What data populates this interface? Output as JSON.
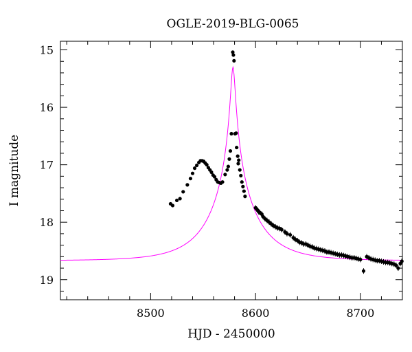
{
  "chart_data": {
    "type": "scatter",
    "title": "OGLE-2019-BLG-0065",
    "xlabel": "HJD - 2450000",
    "ylabel": "I magnitude",
    "xlim": [
      8414,
      8740
    ],
    "ylim": [
      19.35,
      14.85
    ],
    "y_inverted": true,
    "grid": false,
    "legend": "none",
    "xticks": [
      8500,
      8600,
      8700
    ],
    "yticks": [
      15,
      16,
      17,
      18,
      19
    ],
    "colors": {
      "data": "#000000",
      "model": "#ff00ff",
      "axes": "#000000"
    },
    "series": [
      {
        "kind": "points",
        "points": [
          [
            8519,
            17.68
          ],
          [
            8521,
            17.71
          ],
          [
            8525,
            17.62
          ],
          [
            8528,
            17.59
          ],
          [
            8531,
            17.47
          ],
          [
            8535,
            17.35
          ],
          [
            8538,
            17.24
          ],
          [
            8540,
            17.15
          ],
          [
            8542,
            17.06
          ],
          [
            8544,
            17.01
          ],
          [
            8546,
            16.96
          ],
          [
            8547.5,
            16.93
          ],
          [
            8549,
            16.93
          ],
          [
            8550.5,
            16.94
          ],
          [
            8552,
            16.97
          ],
          [
            8553.5,
            17.0
          ],
          [
            8555,
            17.05
          ],
          [
            8556.5,
            17.09
          ],
          [
            8558,
            17.13
          ],
          [
            8559.5,
            17.18
          ],
          [
            8561,
            17.21
          ],
          [
            8562.5,
            17.26
          ],
          [
            8564,
            17.3
          ],
          [
            8565.5,
            17.31
          ],
          [
            8567,
            17.32
          ],
          [
            8568.5,
            17.3
          ],
          [
            8571,
            17.17
          ],
          [
            8573,
            17.09
          ],
          [
            8574,
            17.03
          ],
          [
            8575,
            16.9
          ],
          [
            8576,
            16.76
          ],
          [
            8577,
            16.46
          ],
          [
            8578.3,
            15.04
          ],
          [
            8578.9,
            15.09
          ],
          [
            8579.5,
            15.19
          ],
          [
            8580.5,
            16.46
          ],
          [
            8581.5,
            16.45
          ],
          [
            8582,
            16.7
          ],
          [
            8583,
            16.85
          ],
          [
            8583.5,
            16.98
          ],
          [
            8584,
            16.92
          ],
          [
            8585,
            17.09
          ],
          [
            8586,
            17.19
          ],
          [
            8587,
            17.3
          ],
          [
            8588,
            17.38
          ],
          [
            8589,
            17.46
          ],
          [
            8590,
            17.55
          ],
          [
            8600,
            17.75
          ],
          [
            8601,
            17.77
          ],
          [
            8602,
            17.79
          ],
          [
            8603,
            17.82
          ],
          [
            8604,
            17.83
          ],
          [
            8606,
            17.86
          ],
          [
            8607,
            17.9
          ],
          [
            8609,
            17.94
          ],
          [
            8611,
            17.97
          ],
          [
            8613,
            18.0
          ],
          [
            8615,
            18.03
          ],
          [
            8617,
            18.06
          ],
          [
            8619,
            18.08
          ],
          [
            8621,
            18.1
          ],
          [
            8623,
            18.11
          ],
          [
            8625,
            18.13
          ],
          [
            8628,
            18.17
          ],
          [
            8630,
            18.2
          ],
          [
            8633,
            18.22
          ],
          [
            8636,
            18.27
          ],
          [
            8638,
            18.3
          ],
          [
            8640,
            18.32
          ],
          [
            8642,
            18.35
          ],
          [
            8644,
            18.36
          ],
          [
            8646,
            18.38
          ],
          [
            8648,
            18.38
          ],
          [
            8650,
            18.4
          ],
          [
            8652,
            18.42
          ],
          [
            8654,
            18.43
          ],
          [
            8656,
            18.45
          ],
          [
            8658,
            18.46
          ],
          [
            8660,
            18.47
          ],
          [
            8662,
            18.48
          ],
          [
            8664,
            18.49
          ],
          [
            8666,
            18.5
          ],
          [
            8668,
            18.52
          ],
          [
            8670,
            18.52
          ],
          [
            8672,
            18.53
          ],
          [
            8674,
            18.54
          ],
          [
            8676,
            18.55
          ],
          [
            8678,
            18.56
          ],
          [
            8680,
            18.57
          ],
          [
            8682,
            18.57
          ],
          [
            8684,
            18.58
          ],
          [
            8686,
            18.59
          ],
          [
            8688,
            18.6
          ],
          [
            8690,
            18.61
          ],
          [
            8692,
            18.62
          ],
          [
            8694,
            18.62
          ],
          [
            8696,
            18.63
          ],
          [
            8698,
            18.64
          ],
          [
            8700,
            18.65
          ],
          [
            8703,
            18.85
          ],
          [
            8706,
            18.6
          ],
          [
            8708,
            18.62
          ],
          [
            8710,
            18.64
          ],
          [
            8712,
            18.65
          ],
          [
            8714,
            18.66
          ],
          [
            8716,
            18.67
          ],
          [
            8718,
            18.67
          ],
          [
            8720,
            18.68
          ],
          [
            8722,
            18.69
          ],
          [
            8724,
            18.7
          ],
          [
            8726,
            18.7
          ],
          [
            8728,
            18.71
          ],
          [
            8730,
            18.72
          ],
          [
            8732,
            18.73
          ],
          [
            8734,
            18.75
          ],
          [
            8736,
            18.8
          ],
          [
            8738,
            18.72
          ],
          [
            8739.5,
            18.68
          ]
        ]
      },
      {
        "kind": "model_curve",
        "baseline": 18.67,
        "peak_time": 8578.5,
        "peak_mag": 15.3
      }
    ]
  }
}
